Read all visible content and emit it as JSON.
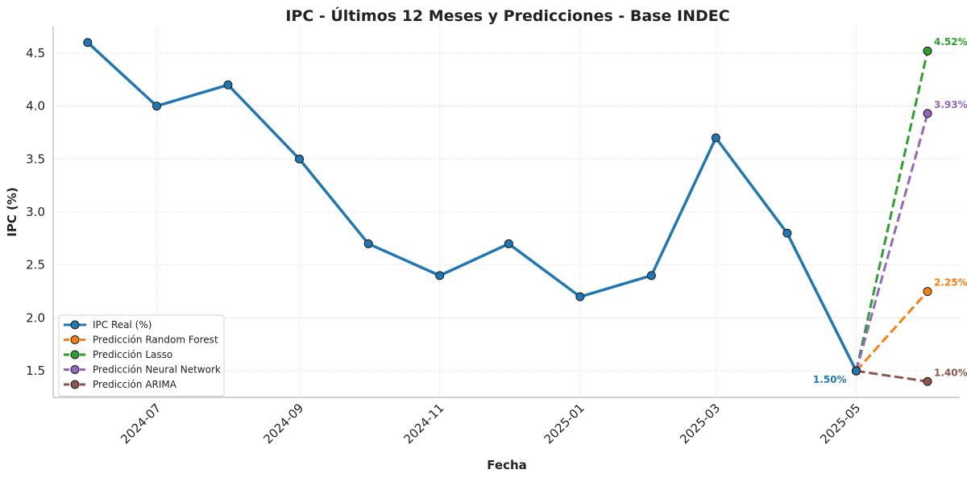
{
  "chart_data": {
    "type": "line",
    "title": "IPC - Últimos 12 Meses y Predicciones - Base INDEC",
    "xlabel": "Fecha",
    "ylabel": "IPC (%)",
    "ylim": [
      1.25,
      4.75
    ],
    "yticks": [
      1.5,
      2.0,
      2.5,
      3.0,
      3.5,
      4.0,
      4.5
    ],
    "ytick_labels": [
      "1.5",
      "2.0",
      "2.5",
      "3.0",
      "3.5",
      "4.0",
      "4.5"
    ],
    "xlim": [
      "2024-05-17",
      "2025-06-15"
    ],
    "xticks": [
      "2024-07-01",
      "2024-09-01",
      "2024-11-01",
      "2025-01-01",
      "2025-03-01",
      "2025-05-01"
    ],
    "xtick_labels": [
      "2024-07",
      "2024-09",
      "2024-11",
      "2025-01",
      "2025-03",
      "2025-05"
    ],
    "grid": true,
    "legend_position": "lower-left",
    "series": [
      {
        "name": "IPC Real (%)",
        "color": "#1f77b4",
        "dashed": false,
        "x": [
          "2024-06-01",
          "2024-07-01",
          "2024-08-01",
          "2024-09-01",
          "2024-10-01",
          "2024-11-01",
          "2024-12-01",
          "2025-01-01",
          "2025-02-01",
          "2025-03-01",
          "2025-04-01",
          "2025-05-01"
        ],
        "y": [
          4.6,
          4.0,
          4.2,
          3.5,
          2.7,
          2.4,
          2.7,
          2.2,
          2.4,
          3.7,
          2.8,
          1.5
        ]
      },
      {
        "name": "Predicción Random Forest",
        "color": "#ff7f0e",
        "dashed": true,
        "x": [
          "2025-05-01",
          "2025-06-01"
        ],
        "y": [
          1.5,
          2.25
        ]
      },
      {
        "name": "Predicción Lasso",
        "color": "#2ca02c",
        "dashed": true,
        "x": [
          "2025-05-01",
          "2025-06-01"
        ],
        "y": [
          1.5,
          4.52
        ]
      },
      {
        "name": "Predicción Neural Network",
        "color": "#9467bd",
        "dashed": true,
        "x": [
          "2025-05-01",
          "2025-06-01"
        ],
        "y": [
          1.5,
          3.93
        ]
      },
      {
        "name": "Predicción ARIMA",
        "color": "#8c564b",
        "dashed": true,
        "x": [
          "2025-05-01",
          "2025-06-01"
        ],
        "y": [
          1.5,
          1.4
        ]
      }
    ],
    "annotations": [
      {
        "text": "1.50%",
        "x": "2025-05-01",
        "y": 1.5,
        "color": "#1f77b4",
        "side": "left"
      },
      {
        "text": "4.52%",
        "x": "2025-06-01",
        "y": 4.52,
        "color": "#2ca02c",
        "side": "right"
      },
      {
        "text": "3.93%",
        "x": "2025-06-01",
        "y": 3.93,
        "color": "#9467bd",
        "side": "right"
      },
      {
        "text": "2.25%",
        "x": "2025-06-01",
        "y": 2.25,
        "color": "#ff7f0e",
        "side": "right"
      },
      {
        "text": "1.40%",
        "x": "2025-06-01",
        "y": 1.4,
        "color": "#8c564b",
        "side": "right"
      }
    ]
  }
}
